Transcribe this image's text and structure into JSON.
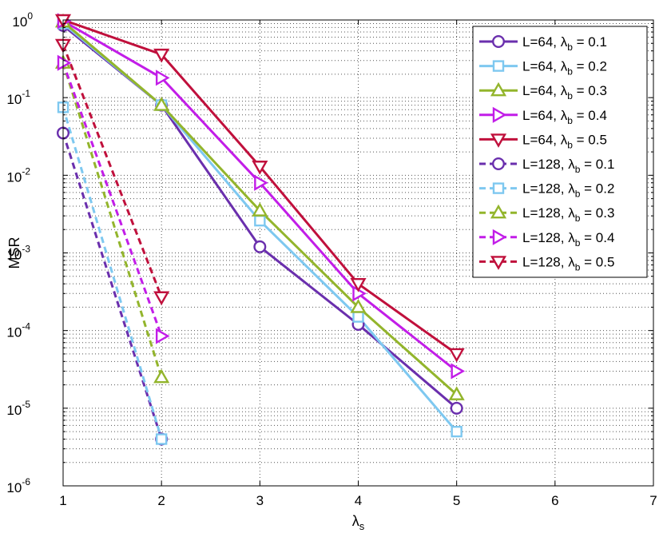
{
  "chart_data": {
    "type": "line",
    "title": "",
    "xlabel": {
      "main": "λ",
      "sub": "s"
    },
    "ylabel": "MSR",
    "xlim": [
      1,
      7
    ],
    "ylim": [
      1e-06,
      1
    ],
    "yscale": "log",
    "grid": true,
    "legend_position": "top-right",
    "x_ticks": [
      "1",
      "2",
      "3",
      "4",
      "5",
      "6",
      "7"
    ],
    "y_ticks": [
      {
        "base": "10",
        "exp": "0"
      },
      {
        "base": "10",
        "exp": "-1"
      },
      {
        "base": "10",
        "exp": "-2"
      },
      {
        "base": "10",
        "exp": "-3"
      },
      {
        "base": "10",
        "exp": "-4"
      },
      {
        "base": "10",
        "exp": "-5"
      },
      {
        "base": "10",
        "exp": "-6"
      }
    ],
    "series": [
      {
        "name": "L=64, λb = 0.1",
        "legend_prefix": "L=64, λ",
        "legend_sub": "b",
        "legend_suffix": " = 0.1",
        "color": "#6a2fad",
        "marker": "circle",
        "dash": false,
        "x": [
          1,
          2,
          3,
          4,
          5
        ],
        "values": [
          0.85,
          0.08,
          0.0012,
          0.00012,
          1e-05
        ]
      },
      {
        "name": "L=64, λb = 0.2",
        "legend_prefix": "L=64, λ",
        "legend_sub": "b",
        "legend_suffix": " = 0.2",
        "color": "#7ec8f0",
        "marker": "square",
        "dash": false,
        "x": [
          1,
          2,
          3,
          4,
          5
        ],
        "values": [
          0.9,
          0.08,
          0.0026,
          0.00015,
          5e-06
        ]
      },
      {
        "name": "L=64, λb = 0.3",
        "legend_prefix": "L=64, λ",
        "legend_sub": "b",
        "legend_suffix": " = 0.3",
        "color": "#93b52c",
        "marker": "triangle-up",
        "dash": false,
        "x": [
          1,
          2,
          3,
          4,
          5
        ],
        "values": [
          0.95,
          0.08,
          0.0035,
          0.0002,
          1.5e-05
        ]
      },
      {
        "name": "L=64, λb = 0.4",
        "legend_prefix": "L=64, λ",
        "legend_sub": "b",
        "legend_suffix": " = 0.4",
        "color": "#c21de8",
        "marker": "triangle-right",
        "dash": false,
        "x": [
          1,
          2,
          3,
          4,
          5
        ],
        "values": [
          0.97,
          0.18,
          0.008,
          0.0003,
          3e-05
        ]
      },
      {
        "name": "L=64, λb = 0.5",
        "legend_prefix": "L=64, λ",
        "legend_sub": "b",
        "legend_suffix": " = 0.5",
        "color": "#c0103c",
        "marker": "triangle-down",
        "dash": false,
        "x": [
          1,
          2,
          3,
          4,
          5
        ],
        "values": [
          1.0,
          0.36,
          0.013,
          0.0004,
          5e-05
        ]
      },
      {
        "name": "L=128, λb = 0.1",
        "legend_prefix": "L=128, λ",
        "legend_sub": "b",
        "legend_suffix": " = 0.1",
        "color": "#6a2fad",
        "marker": "circle",
        "dash": true,
        "x": [
          1,
          2
        ],
        "values": [
          0.035,
          4e-06
        ]
      },
      {
        "name": "L=128, λb = 0.2",
        "legend_prefix": "L=128, λ",
        "legend_sub": "b",
        "legend_suffix": " = 0.2",
        "color": "#7ec8f0",
        "marker": "square",
        "dash": true,
        "x": [
          1,
          2
        ],
        "values": [
          0.075,
          4e-06
        ]
      },
      {
        "name": "L=128, λb = 0.3",
        "legend_prefix": "L=128, λ",
        "legend_sub": "b",
        "legend_suffix": " = 0.3",
        "color": "#93b52c",
        "marker": "triangle-up",
        "dash": true,
        "x": [
          1,
          2
        ],
        "values": [
          0.28,
          2.5e-05
        ]
      },
      {
        "name": "L=128, λb = 0.4",
        "legend_prefix": "L=128, λ",
        "legend_sub": "b",
        "legend_suffix": " = 0.4",
        "color": "#c21de8",
        "marker": "triangle-right",
        "dash": true,
        "x": [
          1,
          2
        ],
        "values": [
          0.28,
          8.5e-05
        ]
      },
      {
        "name": "L=128, λb = 0.5",
        "legend_prefix": "L=128, λ",
        "legend_sub": "b",
        "legend_suffix": " = 0.5",
        "color": "#c0103c",
        "marker": "triangle-down",
        "dash": true,
        "x": [
          1,
          2
        ],
        "values": [
          0.48,
          0.00027
        ]
      }
    ]
  }
}
